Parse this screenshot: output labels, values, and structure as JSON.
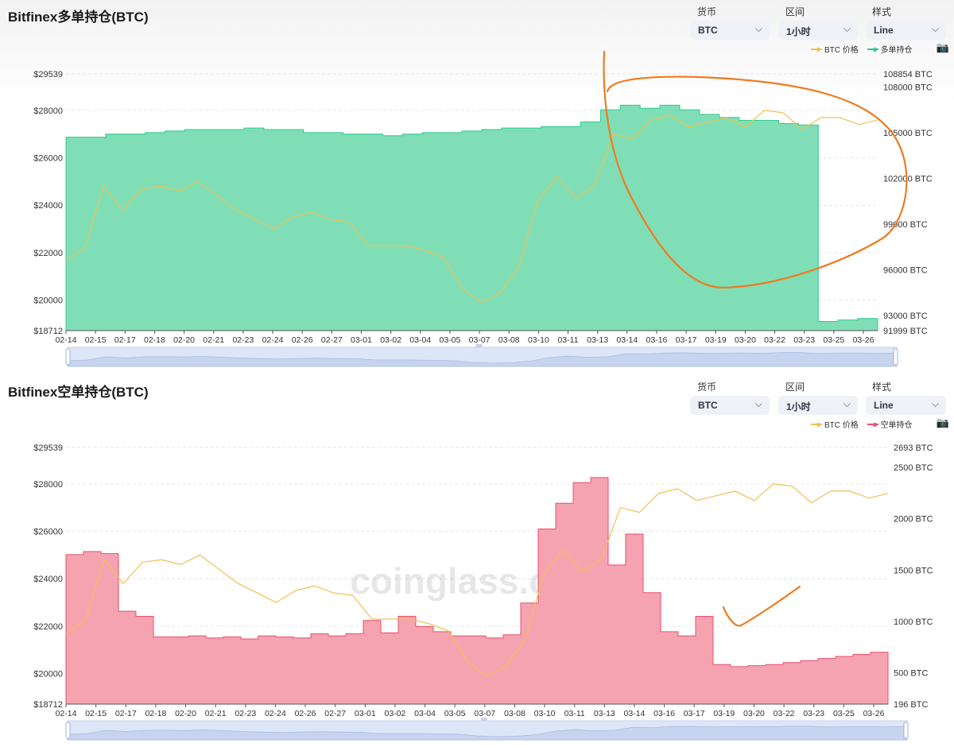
{
  "chart_data": [
    {
      "type": "area",
      "title": "Bitfinex多单持仓(BTC)",
      "controls": [
        {
          "label": "货币",
          "value": "BTC"
        },
        {
          "label": "区间",
          "value": "1小时"
        },
        {
          "label": "样式",
          "value": "Line"
        }
      ],
      "legend": [
        "BTC 价格",
        "多单持仓"
      ],
      "legend_position": "top-right",
      "watermark": "coinglass.com",
      "x_ticks": [
        "02-14",
        "02-15",
        "02-17",
        "02-18",
        "02-20",
        "02-21",
        "02-23",
        "02-24",
        "02-26",
        "02-27",
        "03-01",
        "03-02",
        "03-04",
        "03-05",
        "03-07",
        "03-08",
        "03-10",
        "03-11",
        "03-13",
        "03-14",
        "03-16",
        "03-17",
        "03-19",
        "03-20",
        "03-22",
        "03-23",
        "03-25",
        "03-26"
      ],
      "y_left_ticks": [
        "$29539",
        "$28000",
        "$26000",
        "$24000",
        "$22000",
        "$20000",
        "$18712"
      ],
      "y_right_ticks": [
        "108854 BTC",
        "108000 BTC",
        "105000 BTC",
        "102000 BTC",
        "99000 BTC",
        "96000 BTC",
        "93000 BTC",
        "91999 BTC"
      ],
      "y_left_range": [
        18712,
        29539
      ],
      "y_right_range": [
        91999,
        108854
      ],
      "series": [
        {
          "name": "BTC 价格",
          "color": "#f0c050",
          "axis": "left",
          "values": [
            21700,
            22200,
            24800,
            23800,
            24700,
            24800,
            24600,
            25000,
            24400,
            23800,
            23400,
            23000,
            23500,
            23700,
            23400,
            23300,
            22300,
            22300,
            22300,
            22100,
            21800,
            20500,
            19900,
            20300,
            21400,
            24200,
            25200,
            24300,
            24800,
            27000,
            26800,
            27600,
            27800,
            27300,
            27500,
            27700,
            27300,
            28000,
            27900,
            27200,
            27700,
            27700,
            27400,
            27600
          ]
        },
        {
          "name": "多单持仓",
          "color": "#2ecc8f",
          "fill": "#7fdeb6",
          "axis": "right",
          "values": [
            104700,
            104700,
            104900,
            104900,
            105000,
            105100,
            105200,
            105200,
            105200,
            105300,
            105200,
            105200,
            105000,
            105000,
            104900,
            104900,
            104800,
            104900,
            105000,
            105000,
            105100,
            105200,
            105300,
            105300,
            105400,
            105400,
            105700,
            106500,
            106800,
            106600,
            106800,
            106500,
            106200,
            106000,
            105800,
            105800,
            105600,
            105500,
            92600,
            92700,
            92800
          ]
        }
      ]
    },
    {
      "type": "area",
      "title": "Bitfinex空单持仓(BTC)",
      "controls": [
        {
          "label": "货币",
          "value": "BTC"
        },
        {
          "label": "区间",
          "value": "1小时"
        },
        {
          "label": "样式",
          "value": "Line"
        }
      ],
      "legend": [
        "BTC 价格",
        "空单持仓"
      ],
      "legend_position": "top-right",
      "watermark": "coinglass.com",
      "x_ticks": [
        "02-14",
        "02-15",
        "02-17",
        "02-18",
        "02-20",
        "02-21",
        "02-23",
        "02-24",
        "02-26",
        "02-27",
        "03-01",
        "03-02",
        "03-04",
        "03-05",
        "03-07",
        "03-08",
        "03-10",
        "03-11",
        "03-13",
        "03-14",
        "03-16",
        "03-17",
        "03-19",
        "03-20",
        "03-22",
        "03-23",
        "03-25",
        "03-26"
      ],
      "y_left_ticks": [
        "$29539",
        "$28000",
        "$26000",
        "$24000",
        "$22000",
        "$20000",
        "$18712"
      ],
      "y_right_ticks": [
        "2693 BTC",
        "2500 BTC",
        "2000 BTC",
        "1500 BTC",
        "1000 BTC",
        "500 BTC",
        "196 BTC"
      ],
      "y_left_range": [
        18712,
        29539
      ],
      "y_right_range": [
        196,
        2693
      ],
      "series": [
        {
          "name": "BTC 价格",
          "color": "#f0c050",
          "axis": "left",
          "values": [
            21700,
            22200,
            24800,
            23800,
            24700,
            24800,
            24600,
            25000,
            24400,
            23800,
            23400,
            23000,
            23500,
            23700,
            23400,
            23300,
            22300,
            22300,
            22300,
            22100,
            21800,
            20500,
            19900,
            20300,
            21400,
            24200,
            25200,
            24300,
            24800,
            27000,
            26800,
            27600,
            27800,
            27300,
            27500,
            27700,
            27300,
            28000,
            27900,
            27200,
            27700,
            27700,
            27400,
            27600
          ]
        },
        {
          "name": "空单持仓",
          "color": "#e8506a",
          "fill": "#f5a3b0",
          "axis": "right",
          "values": [
            1650,
            1680,
            1660,
            1100,
            1050,
            850,
            850,
            860,
            840,
            850,
            830,
            860,
            850,
            840,
            880,
            860,
            880,
            1010,
            890,
            1050,
            950,
            900,
            860,
            860,
            840,
            870,
            1180,
            1900,
            2150,
            2350,
            2400,
            1550,
            1850,
            1280,
            900,
            860,
            1050,
            580,
            560,
            570,
            580,
            600,
            620,
            640,
            660,
            680,
            700
          ]
        }
      ]
    }
  ]
}
